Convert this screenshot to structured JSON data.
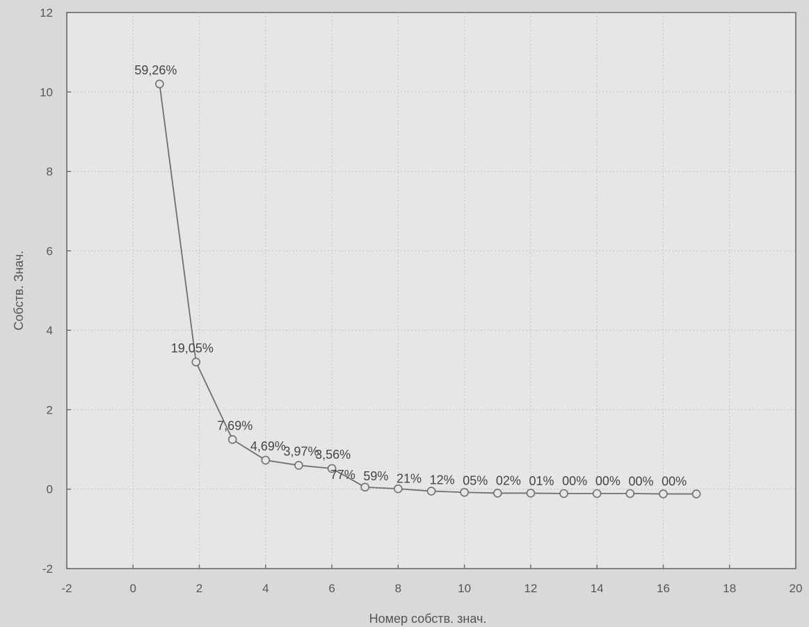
{
  "chart_data": {
    "type": "line",
    "title": "",
    "xlabel": "Номер собств. знач.",
    "ylabel": "Собств. Знач.",
    "xlim": [
      -2,
      20
    ],
    "ylim": [
      -2,
      12
    ],
    "xticks": [
      -2,
      0,
      2,
      4,
      6,
      8,
      10,
      12,
      14,
      16,
      18,
      20
    ],
    "yticks": [
      -2,
      0,
      2,
      4,
      6,
      8,
      10,
      12
    ],
    "grid": true,
    "colors": {
      "line": "#6f6f6f",
      "background": "#e6e6e6",
      "frame": "#6a6a6a"
    },
    "series": [
      {
        "x": [
          0.8,
          1.9,
          3,
          4,
          5,
          6,
          7,
          8,
          9,
          10,
          11,
          12,
          13,
          14,
          15,
          16,
          17
        ],
        "y": [
          10.2,
          3.2,
          1.25,
          0.73,
          0.6,
          0.52,
          0.05,
          0.01,
          -0.05,
          -0.08,
          -0.1,
          -0.1,
          -0.11,
          -0.11,
          -0.11,
          -0.12,
          -0.12
        ],
        "labels": [
          "59,26%",
          "19,05%",
          "7,69%",
          "4,69%",
          "3,97%",
          "3,56%",
          "77%",
          "59%",
          "21%",
          "12%",
          "05%",
          "02%",
          "01%",
          "00%",
          "00%",
          "00%",
          "00%"
        ]
      }
    ]
  }
}
